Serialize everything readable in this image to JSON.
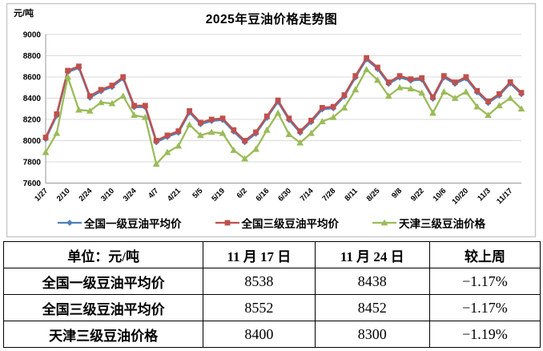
{
  "chart_data": {
    "type": "line",
    "title": "2025年豆油价格走势图",
    "ylabel": "元/吨",
    "xlabel": "",
    "ylim": [
      7600,
      9000
    ],
    "ytick_step": 200,
    "grid": "horizontal",
    "legend_position": "bottom",
    "xtick_shown_every": 2,
    "x": [
      "1/27",
      "2/3",
      "2/10",
      "2/17",
      "2/24",
      "3/3",
      "3/10",
      "3/17",
      "3/24",
      "3/31",
      "4/7",
      "4/14",
      "4/21",
      "4/28",
      "5/5",
      "5/12",
      "5/19",
      "5/26",
      "6/2",
      "6/9",
      "6/16",
      "6/23",
      "6/30",
      "7/7",
      "7/14",
      "7/21",
      "7/28",
      "8/4",
      "8/11",
      "8/18",
      "8/25",
      "9/1",
      "9/8",
      "9/15",
      "9/22",
      "9/29",
      "10/6",
      "10/13",
      "10/20",
      "10/27",
      "11/3",
      "11/10",
      "11/17",
      "11/24"
    ],
    "series": [
      {
        "name": "全国一级豆油平均价",
        "color": "#4F81BD",
        "marker": "diamond",
        "values": [
          8015,
          8235,
          8645,
          8685,
          8405,
          8465,
          8505,
          8585,
          8315,
          8315,
          7985,
          8035,
          8075,
          8265,
          8155,
          8185,
          8195,
          8085,
          7985,
          8065,
          8215,
          8365,
          8195,
          8075,
          8175,
          8295,
          8305,
          8415,
          8595,
          8765,
          8675,
          8535,
          8595,
          8565,
          8575,
          8395,
          8595,
          8535,
          8585,
          8455,
          8355,
          8425,
          8538,
          8438
        ]
      },
      {
        "name": "全国三级豆油平均价",
        "color": "#C0504D",
        "marker": "square",
        "values": [
          8030,
          8250,
          8660,
          8700,
          8420,
          8480,
          8520,
          8600,
          8330,
          8330,
          8000,
          8050,
          8090,
          8280,
          8170,
          8200,
          8210,
          8100,
          8000,
          8080,
          8230,
          8380,
          8210,
          8090,
          8190,
          8310,
          8320,
          8430,
          8610,
          8780,
          8690,
          8550,
          8610,
          8580,
          8590,
          8410,
          8610,
          8550,
          8600,
          8470,
          8370,
          8440,
          8552,
          8452
        ]
      },
      {
        "name": "天津三级豆油价格",
        "color": "#9BBB59",
        "marker": "triangle",
        "values": [
          7890,
          8070,
          8600,
          8290,
          8280,
          8360,
          8350,
          8420,
          8240,
          8220,
          7780,
          7890,
          7950,
          8150,
          8050,
          8080,
          8070,
          7910,
          7830,
          7920,
          8100,
          8260,
          8060,
          7980,
          8070,
          8180,
          8220,
          8310,
          8480,
          8670,
          8570,
          8420,
          8500,
          8490,
          8450,
          8260,
          8460,
          8400,
          8460,
          8320,
          8240,
          8330,
          8400,
          8300
        ]
      }
    ]
  },
  "price_table": {
    "unit_header": "单位：元/吨",
    "col_nov17": "11 月 17 日",
    "col_nov24": "11 月 24 日",
    "col_wow": "较上周",
    "rows": [
      {
        "label": "全国一级豆油平均价",
        "nov17": "8538",
        "nov24": "8438",
        "wow": "−1.17%"
      },
      {
        "label": "全国三级豆油平均价",
        "nov17": "8552",
        "nov24": "8452",
        "wow": "−1.17%"
      },
      {
        "label": "天津三级豆油价格",
        "nov17": "8400",
        "nov24": "8300",
        "wow": "−1.19%"
      }
    ]
  }
}
